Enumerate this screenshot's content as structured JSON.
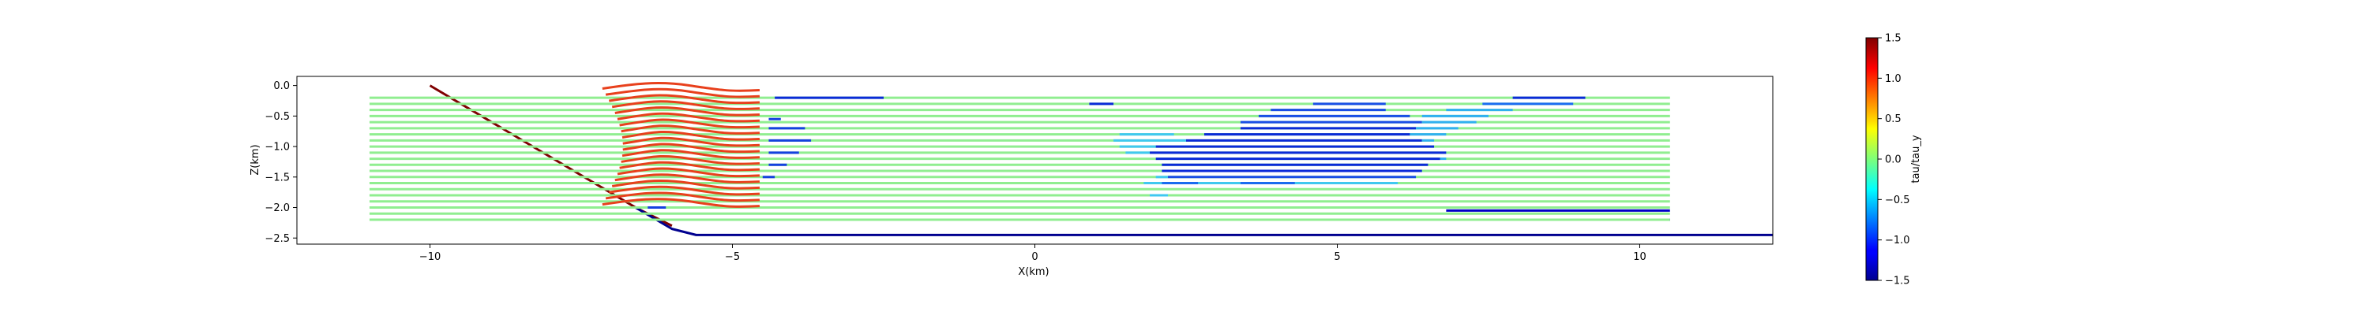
{
  "chart_data": {
    "type": "line",
    "title": "",
    "xlabel": "X(km)",
    "ylabel": "Z(km)",
    "xlim": [
      -12.2,
      12.2
    ],
    "ylim": [
      -2.6,
      0.15
    ],
    "xticks": [
      -10,
      -5,
      0,
      5,
      10
    ],
    "xtick_labels": [
      "−10",
      "−5",
      "0",
      "5",
      "10"
    ],
    "yticks": [
      0.0,
      -0.5,
      -1.0,
      -1.5,
      -2.0,
      -2.5
    ],
    "ytick_labels": [
      "0.0",
      "−0.5",
      "−1.0",
      "−1.5",
      "−2.0",
      "−2.5"
    ],
    "grid": false,
    "colormap": "jet",
    "colorbar": {
      "label": "tau/tau_y",
      "range": [
        -1.5,
        1.5
      ],
      "ticks": [
        1.5,
        1.0,
        0.5,
        0.0,
        -0.5,
        -1.0,
        -1.5
      ],
      "tick_labels": [
        "1.5",
        "1.0",
        "0.5",
        "0.0",
        "−0.5",
        "−1.0",
        "−1.5"
      ]
    },
    "series": [
      {
        "kind": "fault",
        "tau": 1.5,
        "color": "#7f0000",
        "x": [
          -10.0,
          -6.6,
          -6.0
        ],
        "z": [
          0.0,
          -2.0,
          -2.3
        ]
      },
      {
        "kind": "interface",
        "tau": -1.5,
        "color": "#00008f",
        "x": [
          -6.6,
          -6.0,
          -5.6,
          12.2
        ],
        "z": [
          -2.0,
          -2.35,
          -2.45,
          -2.45
        ]
      },
      {
        "kind": "base-band",
        "tau": -1.4,
        "color": "#0000c8",
        "x": [
          -5.5,
          10.5
        ],
        "z": [
          -2.2,
          -2.2
        ]
      },
      {
        "kind": "base-band",
        "tau": -1.4,
        "color": "#0000c8",
        "x": [
          6.8,
          10.5
        ],
        "z": [
          -2.05,
          -2.05
        ]
      },
      {
        "kind": "horizon",
        "tau": 0.0,
        "color": "#90ee90",
        "x": [
          -11.0,
          10.5
        ],
        "z": [
          -0.2,
          -0.3,
          -0.4,
          -0.5,
          -0.6,
          -0.7,
          -0.8,
          -0.9,
          -1.0,
          -1.1,
          -1.2,
          -1.3,
          -1.4,
          -1.5,
          -1.6,
          -1.7,
          -1.8,
          -1.9,
          -2.0,
          -2.1,
          -2.2
        ]
      },
      {
        "kind": "fold",
        "tau": 1.2,
        "color": "#e8401c",
        "x": [
          -7.15,
          -4.55
        ],
        "z": [
          -0.05,
          -0.15,
          -0.25,
          -0.35,
          -0.45,
          -0.55,
          -0.65,
          -0.75,
          -0.85,
          -0.95,
          -1.05,
          -1.15,
          -1.25,
          -1.35,
          -1.45,
          -1.55,
          -1.65,
          -1.75,
          -1.85,
          -1.95
        ],
        "note_free": true
      },
      {
        "kind": "segment",
        "tau": -1.4,
        "color": "#0a2ad8",
        "x": [
          -4.3,
          -2.5
        ],
        "z": [
          -0.2,
          -0.2
        ]
      },
      {
        "kind": "segment",
        "tau": -1.2,
        "color": "#1440e0",
        "x": [
          -4.4,
          -4.2
        ],
        "z": [
          -0.55,
          -0.55
        ]
      },
      {
        "kind": "segment",
        "tau": -1.3,
        "color": "#1440e0",
        "x": [
          -4.4,
          -3.8
        ],
        "z": [
          -0.7,
          -0.7
        ]
      },
      {
        "kind": "segment",
        "tau": -1.3,
        "color": "#1440e0",
        "x": [
          -4.4,
          -3.7
        ],
        "z": [
          -0.9,
          -0.9
        ]
      },
      {
        "kind": "segment",
        "tau": -1.3,
        "color": "#1440e0",
        "x": [
          -4.4,
          -3.9
        ],
        "z": [
          -1.1,
          -1.1
        ]
      },
      {
        "kind": "segment",
        "tau": -1.3,
        "color": "#1440e0",
        "x": [
          -4.4,
          -4.1
        ],
        "z": [
          -1.3,
          -1.3
        ]
      },
      {
        "kind": "segment",
        "tau": -1.3,
        "color": "#1440e0",
        "x": [
          -4.5,
          -4.3
        ],
        "z": [
          -1.5,
          -1.5
        ]
      },
      {
        "kind": "segment",
        "tau": -1.4,
        "color": "#1440e0",
        "x": [
          -6.4,
          -6.1
        ],
        "z": [
          -2.0,
          -2.0
        ]
      },
      {
        "kind": "segment",
        "tau": -1.5,
        "color": "#0a2ad8",
        "x": [
          0.9,
          1.3
        ],
        "z": [
          -0.3,
          -0.3
        ]
      },
      {
        "kind": "segment",
        "tau": -1.5,
        "color": "#0a2ad8",
        "x": [
          7.9,
          9.1
        ],
        "z": [
          -0.2,
          -0.2
        ]
      },
      {
        "kind": "segment",
        "tau": -1.2,
        "color": "#1a6cf0",
        "x": [
          7.4,
          8.9
        ],
        "z": [
          -0.3,
          -0.3
        ]
      },
      {
        "kind": "segment",
        "tau": -1.3,
        "color": "#1a4ee6",
        "x": [
          4.6,
          5.8
        ],
        "z": [
          -0.3,
          -0.3
        ]
      },
      {
        "kind": "segment",
        "tau": -1.3,
        "color": "#1a4ee6",
        "x": [
          3.9,
          5.8
        ],
        "z": [
          -0.4,
          -0.4
        ]
      },
      {
        "kind": "segment",
        "tau": -0.8,
        "color": "#30b0f0",
        "x": [
          6.8,
          7.9
        ],
        "z": [
          -0.4,
          -0.4
        ]
      },
      {
        "kind": "segment",
        "tau": -1.3,
        "color": "#1a4ee6",
        "x": [
          3.7,
          6.2
        ],
        "z": [
          -0.5,
          -0.5
        ]
      },
      {
        "kind": "segment",
        "tau": -0.8,
        "color": "#30b0f0",
        "x": [
          6.4,
          7.5
        ],
        "z": [
          -0.5,
          -0.5
        ]
      },
      {
        "kind": "segment",
        "tau": -1.3,
        "color": "#1a4ee6",
        "x": [
          3.4,
          6.4
        ],
        "z": [
          -0.6,
          -0.6
        ]
      },
      {
        "kind": "segment",
        "tau": -0.8,
        "color": "#30b0f0",
        "x": [
          6.4,
          7.3
        ],
        "z": [
          -0.6,
          -0.6
        ]
      },
      {
        "kind": "segment",
        "tau": -1.4,
        "color": "#0a2ad8",
        "x": [
          3.4,
          6.3
        ],
        "z": [
          -0.7,
          -0.7
        ]
      },
      {
        "kind": "segment",
        "tau": -0.8,
        "color": "#30b0f0",
        "x": [
          6.3,
          7.0
        ],
        "z": [
          -0.7,
          -0.7
        ]
      },
      {
        "kind": "segment",
        "tau": -0.7,
        "color": "#40c8f0",
        "x": [
          1.4,
          2.3
        ],
        "z": [
          -0.8,
          -0.8
        ]
      },
      {
        "kind": "segment",
        "tau": -1.4,
        "color": "#0a2ad8",
        "x": [
          2.8,
          6.2
        ],
        "z": [
          -0.8,
          -0.8
        ]
      },
      {
        "kind": "segment",
        "tau": -0.8,
        "color": "#30b0f0",
        "x": [
          6.2,
          6.8
        ],
        "z": [
          -0.8,
          -0.8
        ]
      },
      {
        "kind": "segment",
        "tau": -0.7,
        "color": "#40c8f0",
        "x": [
          1.3,
          2.5
        ],
        "z": [
          -0.9,
          -0.9
        ]
      },
      {
        "kind": "segment",
        "tau": -1.4,
        "color": "#0a2ad8",
        "x": [
          2.5,
          6.4
        ],
        "z": [
          -0.9,
          -0.9
        ]
      },
      {
        "kind": "segment",
        "tau": -0.8,
        "color": "#30b0f0",
        "x": [
          6.4,
          6.6
        ],
        "z": [
          -0.9,
          -0.9
        ]
      },
      {
        "kind": "segment",
        "tau": -0.7,
        "color": "#40c8f0",
        "x": [
          1.4,
          2.0
        ],
        "z": [
          -1.0,
          -1.0
        ]
      },
      {
        "kind": "segment",
        "tau": -1.4,
        "color": "#0a2ad8",
        "x": [
          2.0,
          6.6
        ],
        "z": [
          -1.0,
          -1.0
        ]
      },
      {
        "kind": "segment",
        "tau": -0.7,
        "color": "#40c8f0",
        "x": [
          1.5,
          1.9
        ],
        "z": [
          -1.1,
          -1.1
        ]
      },
      {
        "kind": "segment",
        "tau": -1.4,
        "color": "#0a2ad8",
        "x": [
          1.9,
          6.8
        ],
        "z": [
          -1.1,
          -1.1
        ]
      },
      {
        "kind": "segment",
        "tau": -1.4,
        "color": "#0a2ad8",
        "x": [
          2.0,
          6.7
        ],
        "z": [
          -1.2,
          -1.2
        ]
      },
      {
        "kind": "segment",
        "tau": -0.8,
        "color": "#30b0f0",
        "x": [
          6.7,
          6.8
        ],
        "z": [
          -1.2,
          -1.2
        ]
      },
      {
        "kind": "segment",
        "tau": -1.4,
        "color": "#0a2ad8",
        "x": [
          2.1,
          6.5
        ],
        "z": [
          -1.3,
          -1.3
        ]
      },
      {
        "kind": "segment",
        "tau": -1.4,
        "color": "#0a2ad8",
        "x": [
          2.1,
          6.4
        ],
        "z": [
          -1.4,
          -1.4
        ]
      },
      {
        "kind": "segment",
        "tau": -0.7,
        "color": "#40c8f0",
        "x": [
          2.0,
          2.2
        ],
        "z": [
          -1.5,
          -1.5
        ]
      },
      {
        "kind": "segment",
        "tau": -1.3,
        "color": "#1a4ee6",
        "x": [
          2.2,
          6.3
        ],
        "z": [
          -1.5,
          -1.5
        ]
      },
      {
        "kind": "segment",
        "tau": -0.7,
        "color": "#40c8f0",
        "x": [
          1.8,
          2.1
        ],
        "z": [
          -1.6,
          -1.6
        ]
      },
      {
        "kind": "segment",
        "tau": -1.2,
        "color": "#1a6cf0",
        "x": [
          2.1,
          2.7
        ],
        "z": [
          -1.6,
          -1.6
        ]
      },
      {
        "kind": "segment",
        "tau": -0.7,
        "color": "#40c8f0",
        "x": [
          2.7,
          3.4
        ],
        "z": [
          -1.6,
          -1.6
        ]
      },
      {
        "kind": "segment",
        "tau": -1.2,
        "color": "#1a6cf0",
        "x": [
          3.4,
          4.3
        ],
        "z": [
          -1.6,
          -1.6
        ]
      },
      {
        "kind": "segment",
        "tau": -0.7,
        "color": "#40c8f0",
        "x": [
          4.3,
          6.0
        ],
        "z": [
          -1.6,
          -1.6
        ]
      },
      {
        "kind": "segment",
        "tau": -0.7,
        "color": "#40c8f0",
        "x": [
          1.9,
          2.2
        ],
        "z": [
          -1.8,
          -1.8
        ]
      }
    ]
  }
}
